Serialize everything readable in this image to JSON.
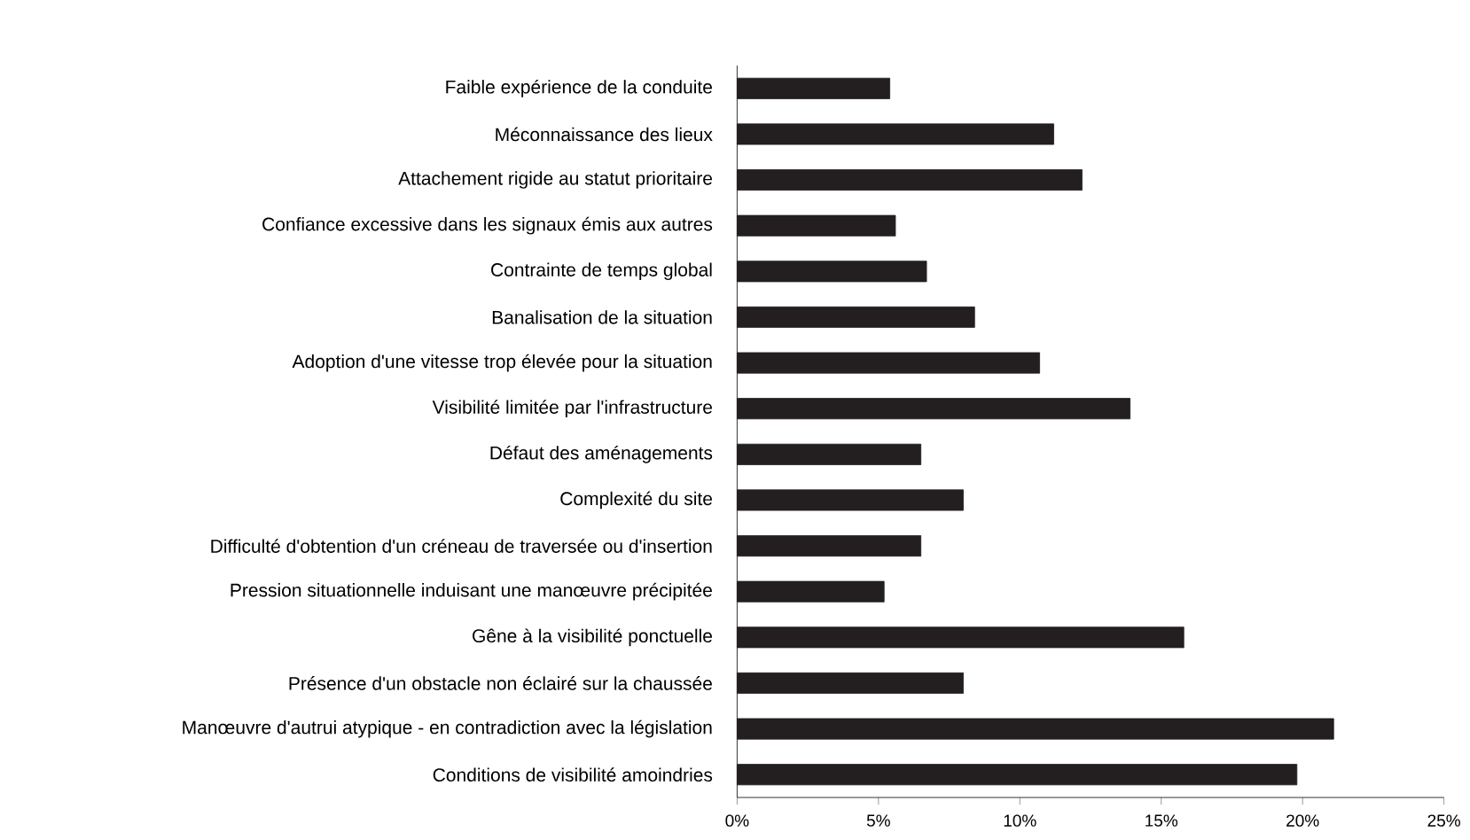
{
  "chart_data": {
    "type": "bar",
    "orientation": "horizontal",
    "categories": [
      "Faible expérience de la conduite",
      "Méconnaissance des lieux",
      "Attachement rigide au statut prioritaire",
      "Confiance excessive dans les signaux émis aux autres",
      "Contrainte de temps global",
      "Banalisation de la situation",
      "Adoption d'une vitesse trop élevée pour la situation",
      "Visibilité limitée par l'infrastructure",
      "Défaut des aménagements",
      "Complexité du site",
      "Difficulté d'obtention d'un créneau de traversée ou d'insertion",
      "Pression situationnelle induisant une manœuvre précipitée",
      "Gêne à la visibilité ponctuelle",
      "Présence d'un obstacle non éclairé sur la chaussée",
      "Manœuvre d'autrui atypique - en contradiction avec la législation",
      "Conditions de visibilité amoindries"
    ],
    "values": [
      5.4,
      11.2,
      12.2,
      5.6,
      6.7,
      8.4,
      10.7,
      13.9,
      6.5,
      8.0,
      6.5,
      5.2,
      15.8,
      8.0,
      21.1,
      19.8
    ],
    "color": "#231f20",
    "xlim": [
      0,
      25
    ],
    "xticks": [
      {
        "value": 0,
        "label": "0%"
      },
      {
        "value": 5,
        "label": "5%"
      },
      {
        "value": 10,
        "label": "10%"
      },
      {
        "value": 15,
        "label": "15%"
      },
      {
        "value": 20,
        "label": "20%"
      },
      {
        "value": 25,
        "label": "25%"
      }
    ],
    "grid": false
  }
}
